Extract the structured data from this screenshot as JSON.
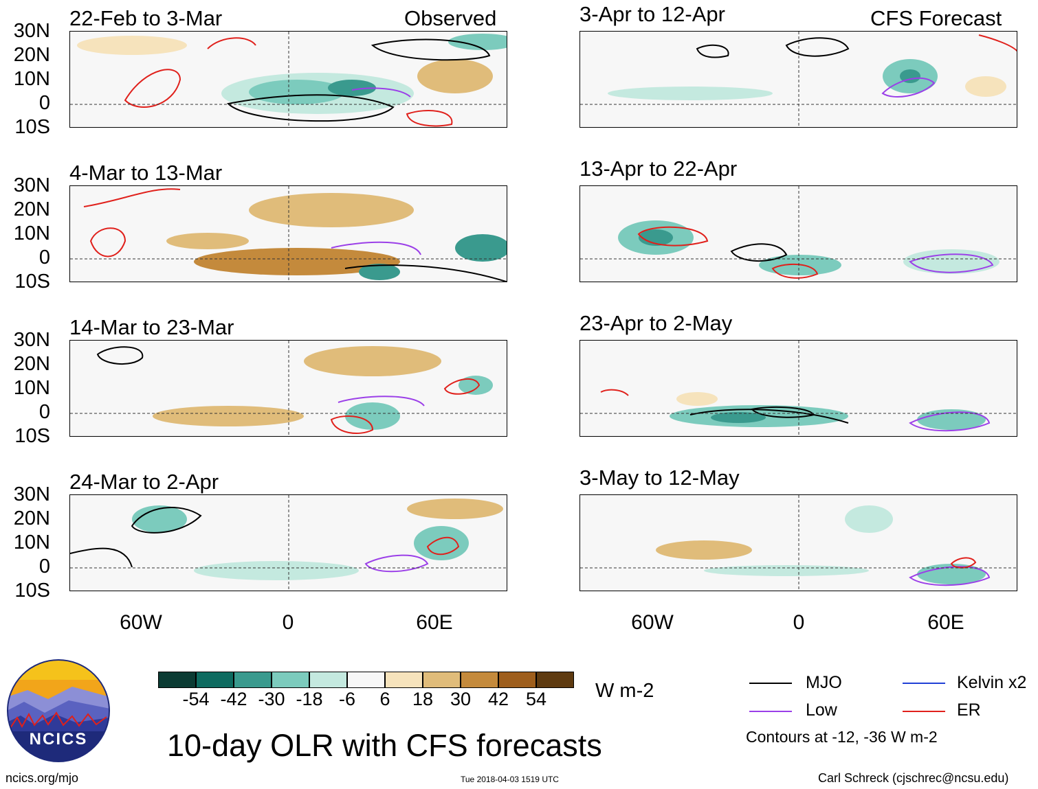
{
  "chart_data": {
    "type": "heatmap",
    "title": "10-day OLR with CFS forecasts",
    "units": "W m-2",
    "columns": [
      "Observed",
      "CFS Forecast"
    ],
    "lat_ticks": [
      "30N",
      "20N",
      "10N",
      "0",
      "10S"
    ],
    "lon_ticks": [
      "60W",
      "0",
      "60E"
    ],
    "lon_range": [
      -90,
      90
    ],
    "lat_range": [
      -10,
      30
    ],
    "panels": [
      {
        "title": "22-Feb to 3-Mar",
        "column": "Observed"
      },
      {
        "title": "4-Mar to 13-Mar",
        "column": "Observed"
      },
      {
        "title": "14-Mar to 23-Mar",
        "column": "Observed"
      },
      {
        "title": "24-Mar to 2-Apr",
        "column": "Observed"
      },
      {
        "title": "3-Apr to 12-Apr",
        "column": "CFS Forecast"
      },
      {
        "title": "13-Apr to 22-Apr",
        "column": "CFS Forecast"
      },
      {
        "title": "23-Apr to 2-May",
        "column": "CFS Forecast"
      },
      {
        "title": "3-May to 12-May",
        "column": "CFS Forecast"
      }
    ],
    "colorbar": {
      "ticks": [
        "-54",
        "-42",
        "-30",
        "-18",
        "-6",
        "6",
        "18",
        "30",
        "42",
        "54"
      ],
      "colors": [
        "#0b3b33",
        "#0e6b60",
        "#3a9a8e",
        "#7ccbbd",
        "#c4e9df",
        "#f7f7f7",
        "#f6e3bc",
        "#e0bc7a",
        "#c48a3c",
        "#9e5e1c",
        "#5e3a10"
      ]
    },
    "legend": [
      {
        "label": "MJO",
        "color": "#000000"
      },
      {
        "label": "Kelvin x2",
        "color": "#1f3fd6"
      },
      {
        "label": "Low",
        "color": "#9b3fe8"
      },
      {
        "label": "ER",
        "color": "#e0201b"
      }
    ],
    "contour_note": "Contours at -12, -36 W m-2"
  },
  "footer": {
    "left": "ncics.org/mjo",
    "timestamp": "Tue 2018-04-03 1519 UTC",
    "right": "Carl Schreck (cjschrec@ncsu.edu)",
    "logo_text": "NCICS"
  }
}
